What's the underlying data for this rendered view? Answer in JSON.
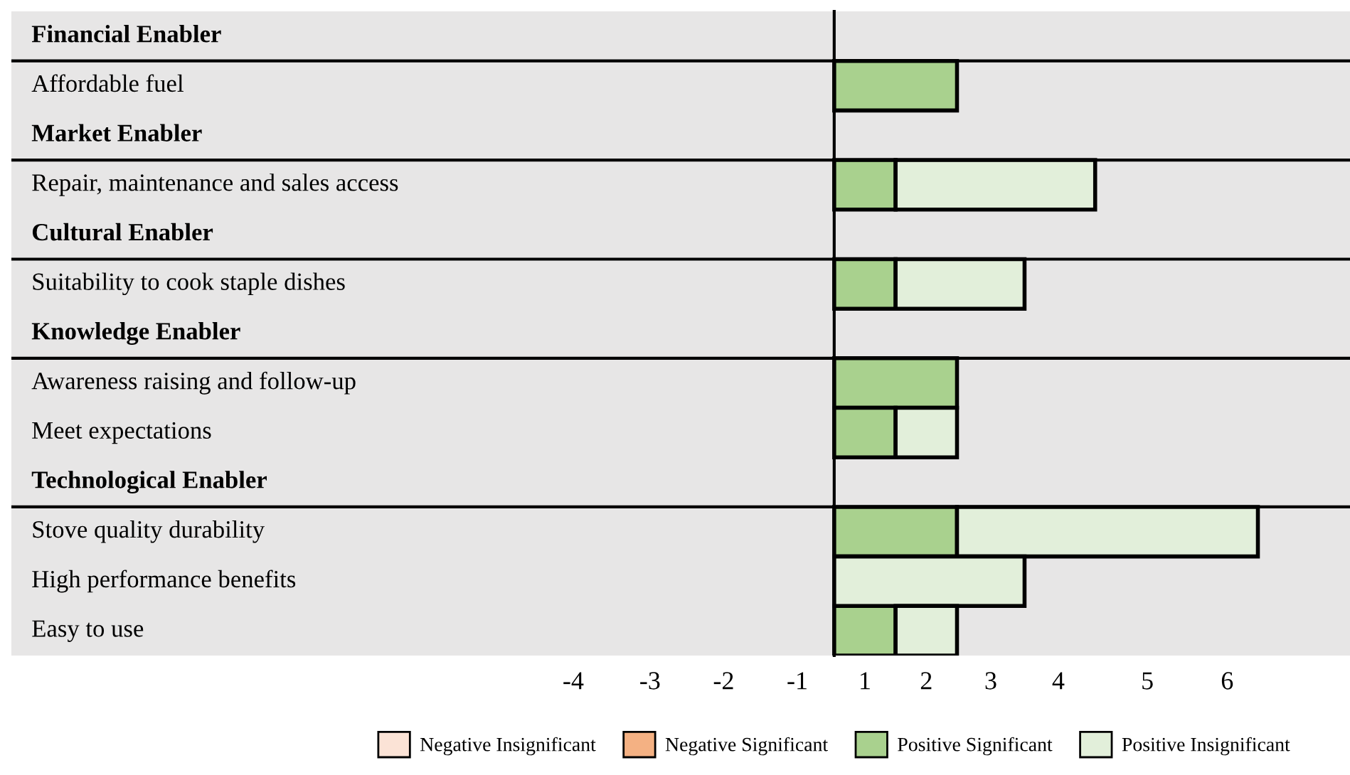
{
  "chart_data": {
    "type": "bar",
    "orientation": "horizontal",
    "stacked": true,
    "categories": [
      "Financial Enabler",
      "Affordable fuel",
      "Market Enabler",
      "Repair, maintenance and sales access",
      "Cultural Enabler",
      "Suitability to cook staple dishes",
      "Knowledge Enabler",
      "Awareness raising and follow-up",
      "Meet expectations",
      "Technological Enabler",
      "Stove quality durability",
      "High performance benefits",
      "Easy to use"
    ],
    "series": [
      {
        "name": "Negative Insignificant",
        "color": "#fbe3d6",
        "values": [
          null,
          null,
          null,
          null,
          null,
          null,
          null,
          null,
          null,
          null,
          null,
          null,
          null
        ]
      },
      {
        "name": "Negative Significant",
        "color": "#f4b183",
        "values": [
          null,
          null,
          null,
          null,
          null,
          null,
          null,
          null,
          null,
          null,
          null,
          null,
          null
        ]
      },
      {
        "name": "Positive Significant",
        "color": "#a9d18e",
        "values": [
          null,
          2,
          null,
          1,
          null,
          1,
          null,
          2,
          1,
          null,
          2,
          null,
          1
        ]
      },
      {
        "name": "Positive Insignificant",
        "color": "#e2efda",
        "values": [
          null,
          null,
          null,
          3.25,
          null,
          2.1,
          null,
          null,
          1,
          null,
          4.9,
          3.1,
          1
        ]
      }
    ],
    "xlim": [
      -13.4,
      8.4
    ],
    "xticks": [
      {
        "value": -4.25,
        "label": "-4"
      },
      {
        "value": -3,
        "label": "-3"
      },
      {
        "value": -1.8,
        "label": "-2"
      },
      {
        "value": -0.6,
        "label": "-1"
      },
      {
        "value": 0.5,
        "label": "1"
      },
      {
        "value": 1.5,
        "label": "2"
      },
      {
        "value": 2.55,
        "label": "3"
      },
      {
        "value": 3.65,
        "label": "4"
      },
      {
        "value": 5.1,
        "label": "5"
      },
      {
        "value": 6.4,
        "label": "6"
      }
    ],
    "legend": "bottom",
    "grid": false
  }
}
